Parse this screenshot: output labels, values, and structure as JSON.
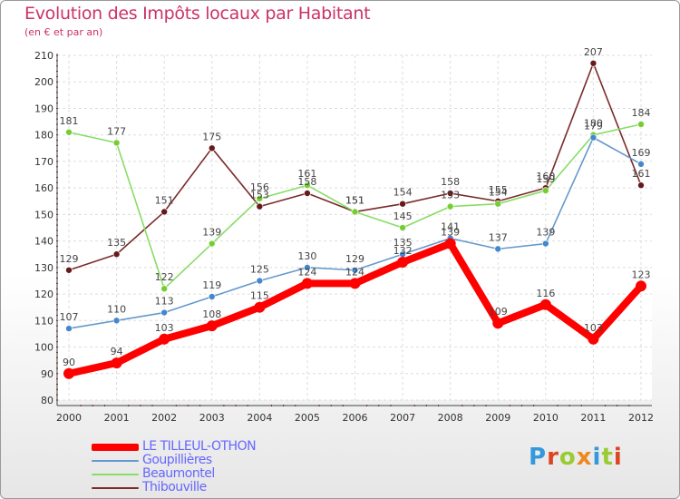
{
  "title": "Evolution des Impôts locaux par Habitant",
  "subtitle": "(en € et par an)",
  "logo": {
    "text": "Proxiti",
    "letter_colors": [
      "#3399dd",
      "#dd4422",
      "#99cc33",
      "#ee8822",
      "#3399dd",
      "#99cc33",
      "#dd4422"
    ]
  },
  "chart_data": {
    "type": "line",
    "title": "Evolution des Impôts locaux par Habitant",
    "subtitle": "(en € et par an)",
    "x": [
      "2000",
      "2001",
      "2002",
      "2003",
      "2004",
      "2005",
      "2006",
      "2007",
      "2008",
      "2009",
      "2010",
      "2011",
      "2012"
    ],
    "ylim": [
      80,
      210
    ],
    "yticks": [
      "80",
      "90",
      "100",
      "110",
      "120",
      "130",
      "140",
      "150",
      "160",
      "170",
      "180",
      "190",
      "200",
      "210"
    ],
    "grid": true,
    "legend_position": "bottom-left",
    "series": [
      {
        "name": "Thibouville",
        "color": "#7a2a2a",
        "dot_color": "#661a1a",
        "values": [
          129,
          135,
          151,
          175,
          153,
          158,
          151,
          154,
          158,
          155,
          160,
          207,
          161
        ],
        "labels": [
          "129",
          "135",
          "151",
          "175",
          "153",
          "158",
          "151",
          "154",
          "158",
          "155",
          "160",
          "207",
          "161"
        ]
      },
      {
        "name": "Beaumontel",
        "color": "#88dd66",
        "dot_color": "#77cc33",
        "values": [
          181,
          177,
          122,
          139,
          156,
          161,
          151,
          145,
          153,
          154,
          159,
          180,
          184
        ],
        "labels": [
          "181",
          "177",
          "122",
          "139",
          "156",
          "161",
          "151",
          "145",
          "153",
          "154",
          "159",
          "180",
          "184"
        ]
      },
      {
        "name": "Goupillières",
        "color": "#6699cc",
        "dot_color": "#4488cc",
        "values": [
          107,
          110,
          113,
          119,
          125,
          130,
          129,
          135,
          141,
          137,
          139,
          179,
          169
        ],
        "labels": [
          "107",
          "110",
          "113",
          "119",
          "125",
          "130",
          "129",
          "135",
          "141",
          "137",
          "139",
          "179",
          "169"
        ]
      },
      {
        "name": "LE TILLEUL-OTHON",
        "color": "#ff0000",
        "dot_color": "#ff0000",
        "values": [
          90,
          94,
          103,
          108,
          115,
          124,
          124,
          132,
          139,
          109,
          116,
          103,
          123
        ],
        "labels": [
          "90",
          "94",
          "103",
          "108",
          "115",
          "124",
          "124",
          "132",
          "139",
          "109",
          "116",
          "103",
          "123"
        ]
      }
    ],
    "legend": [
      "LE TILLEUL-OTHON",
      "Goupillières",
      "Beaumontel",
      "Thibouville"
    ]
  }
}
